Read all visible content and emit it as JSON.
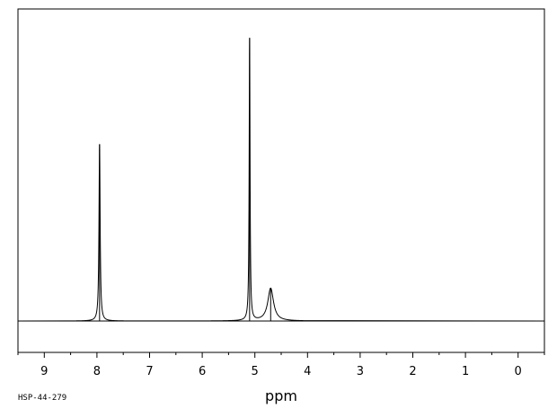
{
  "chart_data": {
    "type": "line",
    "xlabel": "ppm",
    "x_reversed": true,
    "xlim": [
      9.5,
      -0.5
    ],
    "ylim": [
      -0.1,
      1.0
    ],
    "grid": false,
    "ticks": [
      "9",
      "8",
      "7",
      "6",
      "5",
      "4",
      "3",
      "2",
      "1",
      "0"
    ],
    "tick_values": [
      9,
      8,
      7,
      6,
      5,
      4,
      3,
      2,
      1,
      0
    ],
    "minor_tick_values": [
      9.5,
      8.5,
      7.5,
      6.5,
      5.5,
      4.5,
      3.5,
      2.5,
      1.5,
      0.5,
      -0.5
    ],
    "peaks": [
      {
        "ppm": 7.95,
        "intensity": 0.62,
        "width": 0.013
      },
      {
        "ppm": 5.1,
        "intensity": 0.99,
        "width": 0.01
      },
      {
        "ppm": 4.7,
        "intensity": 0.115,
        "width": 0.065
      }
    ],
    "spectrum_label": "HSP-44-279",
    "color": "#000000"
  }
}
